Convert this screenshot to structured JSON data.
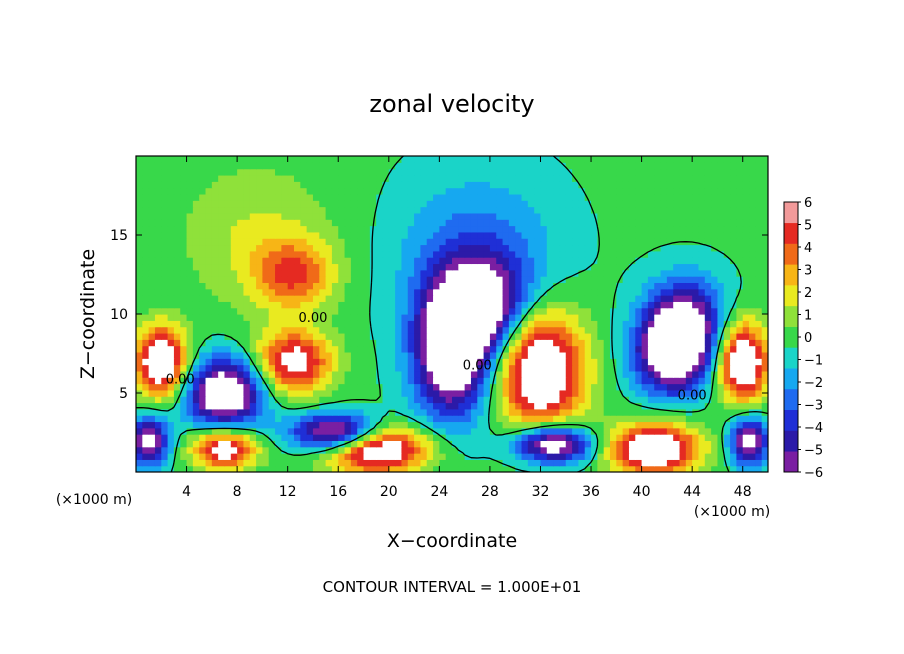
{
  "chart_data": {
    "type": "heatmap",
    "title": "zonal velocity",
    "xlabel": "X−coordinate",
    "ylabel": "Z−coordinate",
    "x_unit": "(×1000 m)",
    "y_unit": "(×1000 m)",
    "xlim": [
      0,
      50
    ],
    "ylim": [
      0,
      20
    ],
    "x_ticks": [
      4,
      8,
      12,
      16,
      20,
      24,
      28,
      32,
      36,
      40,
      44,
      48
    ],
    "y_ticks": [
      5,
      10,
      15
    ],
    "colorbar": {
      "levels": [
        -6,
        -5,
        -4,
        -3,
        -2,
        -1,
        0,
        1,
        2,
        3,
        4,
        5,
        6
      ],
      "labels": [
        "6",
        "5",
        "4",
        "3",
        "2",
        "1",
        "0",
        "−1",
        "−2",
        "−3",
        "−4",
        "−5",
        "−6"
      ],
      "colors": [
        "#7a1fa2",
        "#2b1aa8",
        "#1f2fd6",
        "#1f6bf0",
        "#16a8f0",
        "#1ad4c8",
        "#38d84a",
        "#8fe13a",
        "#e9ea20",
        "#f7b516",
        "#f06a18",
        "#e52a22",
        "#f29a9a"
      ]
    },
    "contour_interval_text": "CONTOUR INTERVAL = 1.000E+01",
    "contour_labels": [
      "0.00",
      "0.00",
      "0.00",
      "0.00"
    ],
    "features": [
      {
        "kind": "max",
        "x": 12.5,
        "z": 12.5,
        "value": 3.2,
        "rx": 3.2,
        "rz": 2.2
      },
      {
        "kind": "max",
        "x": 9.5,
        "z": 15.0,
        "value": 1.4,
        "rx": 6.0,
        "rz": 4.5
      },
      {
        "kind": "min",
        "x": 27.5,
        "z": 10.5,
        "value": -4.5,
        "rx": 3.5,
        "rz": 3.0
      },
      {
        "kind": "min",
        "x": 27.0,
        "z": 13.5,
        "value": -2.2,
        "rx": 6.0,
        "rz": 5.0
      },
      {
        "kind": "min",
        "x": 43.5,
        "z": 10.0,
        "value": -4.0,
        "rx": 3.0,
        "rz": 2.5
      },
      {
        "kind": "max",
        "x": 2.0,
        "z": 7.0,
        "value": 6.5,
        "rx": 2.0,
        "rz": 2.2
      },
      {
        "kind": "min",
        "x": 7.0,
        "z": 5.0,
        "value": -6.5,
        "rx": 3.0,
        "rz": 2.2
      },
      {
        "kind": "max",
        "x": 12.5,
        "z": 7.0,
        "value": 5.0,
        "rx": 3.0,
        "rz": 2.0
      },
      {
        "kind": "min",
        "x": 25.0,
        "z": 7.5,
        "value": -6.5,
        "rx": 3.0,
        "rz": 4.0
      },
      {
        "kind": "max",
        "x": 32.0,
        "z": 6.5,
        "value": 6.5,
        "rx": 3.5,
        "rz": 3.8
      },
      {
        "kind": "min",
        "x": 42.5,
        "z": 7.5,
        "value": -6.5,
        "rx": 3.0,
        "rz": 2.5
      },
      {
        "kind": "max",
        "x": 48.0,
        "z": 7.0,
        "value": 6.5,
        "rx": 2.0,
        "rz": 2.5
      },
      {
        "kind": "min",
        "x": 16.0,
        "z": 2.5,
        "value": -6.5,
        "rx": 3.5,
        "rz": 1.2
      },
      {
        "kind": "max",
        "x": 19.0,
        "z": 1.5,
        "value": 6.5,
        "rx": 4.0,
        "rz": 1.5
      },
      {
        "kind": "min",
        "x": 33.0,
        "z": 1.8,
        "value": -6.5,
        "rx": 3.0,
        "rz": 1.2
      },
      {
        "kind": "max",
        "x": 41.0,
        "z": 1.5,
        "value": 6.5,
        "rx": 3.5,
        "rz": 1.6
      },
      {
        "kind": "max",
        "x": 7.0,
        "z": 1.5,
        "value": 5.5,
        "rx": 2.5,
        "rz": 1.3
      },
      {
        "kind": "min",
        "x": 1.0,
        "z": 2.0,
        "value": -5.5,
        "rx": 1.5,
        "rz": 1.5
      },
      {
        "kind": "min",
        "x": 48.5,
        "z": 2.0,
        "value": -5.5,
        "rx": 1.5,
        "rz": 1.5
      }
    ]
  }
}
